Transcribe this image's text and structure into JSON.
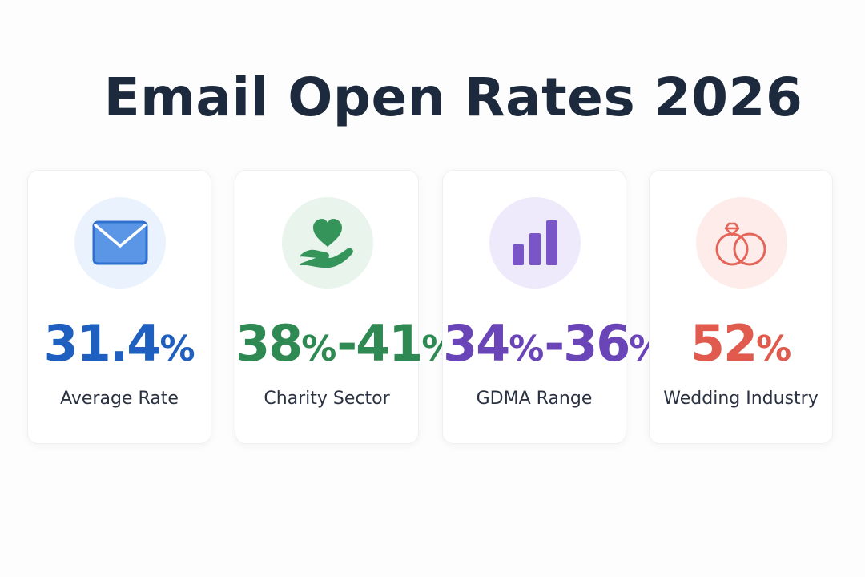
{
  "title": "Email Open Rates 2026",
  "cards": [
    {
      "value_parts": [
        "31.4",
        "%"
      ],
      "label": "Average Rate",
      "icon": "envelope-icon",
      "color": "#1f5fbf",
      "circle_color": "#eaf2fd"
    },
    {
      "value_parts": [
        "38",
        "%",
        "-41",
        "%"
      ],
      "label": "Charity Sector",
      "icon": "heart-hand-icon",
      "color": "#2e8a52",
      "circle_color": "#e8f4ec"
    },
    {
      "value_parts": [
        "34",
        "%",
        "-36",
        "%"
      ],
      "label": "GDMA Range",
      "icon": "bar-chart-icon",
      "color": "#6a45b8",
      "circle_color": "#efeafb"
    },
    {
      "value_parts": [
        "52",
        "%"
      ],
      "label": "Wedding Industry",
      "icon": "wedding-rings-icon",
      "color": "#e05a4e",
      "circle_color": "#fdece9"
    }
  ]
}
